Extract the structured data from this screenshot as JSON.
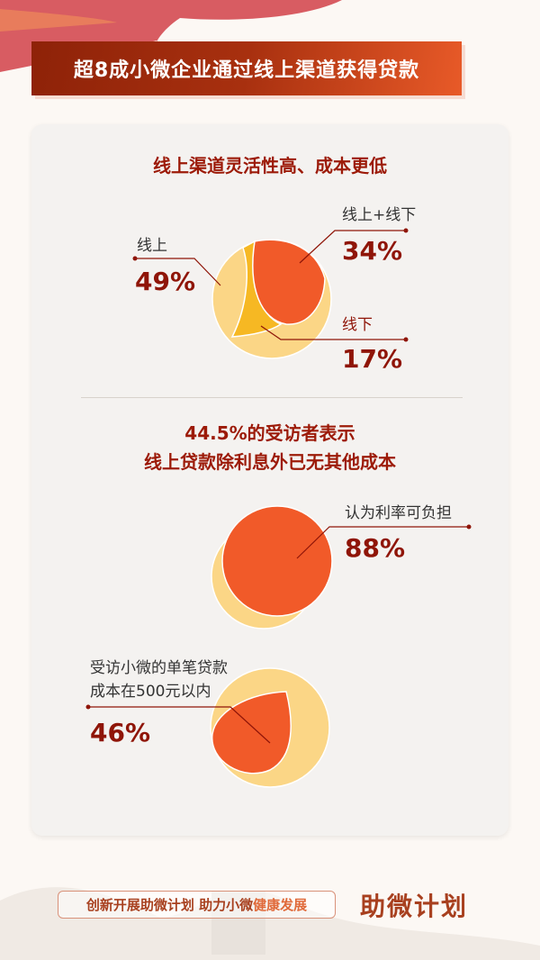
{
  "header": {
    "title": "超8成小微企业通过线上渠道获得贷款"
  },
  "section1": {
    "title": "线上渠道灵活性高、成本更低"
  },
  "section2": {
    "title_line1": "44.5%的受访者表示",
    "title_line2": "线上贷款除利息外已无其他成本"
  },
  "footer": {
    "slogan_part1": "创新开展助微计划 助力小微",
    "slogan_part2": "健康发展",
    "logo": "助微计划"
  },
  "colors": {
    "dark_red": "#8f1508",
    "orange": "#f15a29",
    "yellow": "#f6b823",
    "light_yellow": "#fbd686"
  },
  "chart_data": [
    {
      "type": "pie",
      "title": "线上渠道灵活性高、成本更低",
      "slices": [
        {
          "label": "线上",
          "value": 49,
          "display": "49%"
        },
        {
          "label": "线上+线下",
          "value": 34,
          "display": "34%"
        },
        {
          "label": "线下",
          "value": 17,
          "display": "17%"
        }
      ]
    },
    {
      "type": "pie",
      "slices": [
        {
          "label": "认为利率可负担",
          "value": 88,
          "display": "88%"
        }
      ]
    },
    {
      "type": "pie",
      "slices": [
        {
          "label_line1": "受访小微的单笔贷款",
          "label_line2": "成本在500元以内",
          "value": 46,
          "display": "46%"
        }
      ]
    }
  ]
}
